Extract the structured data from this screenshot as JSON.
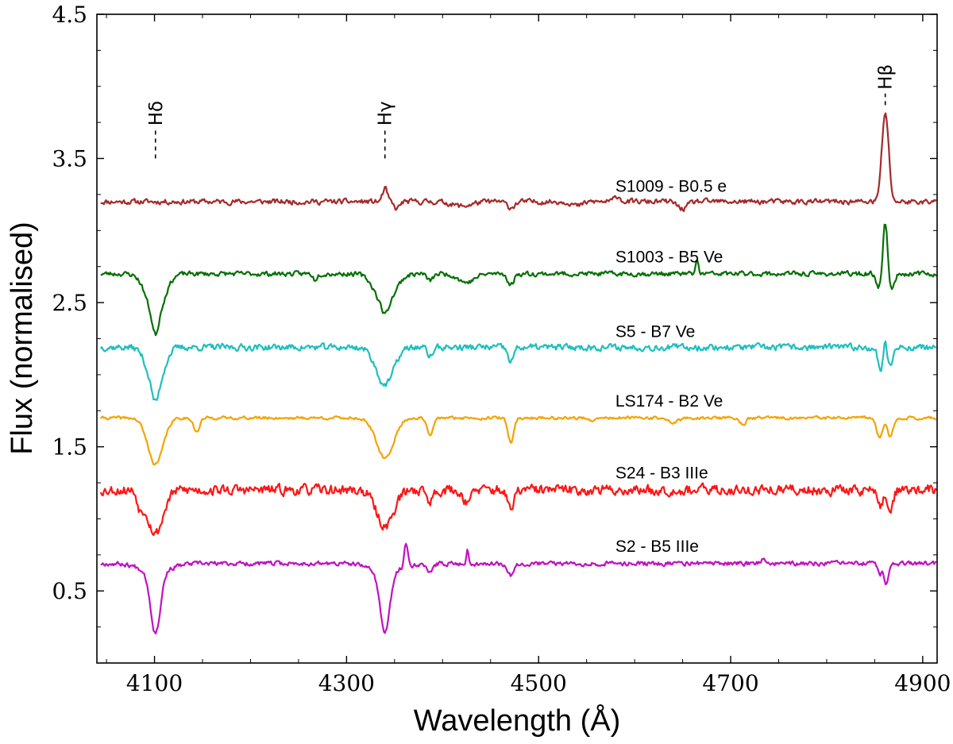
{
  "chart_data": {
    "type": "line",
    "title": "",
    "xlabel": "Wavelength (Å)",
    "ylabel": "Flux (normalised)",
    "xlim": [
      4040,
      4915
    ],
    "ylim": [
      0,
      4.5
    ],
    "xticks": [
      4100,
      4300,
      4500,
      4700,
      4900
    ],
    "xtick_labels": [
      "4100",
      "4300",
      "4500",
      "4700",
      "4900"
    ],
    "yticks": [
      0.5,
      1.5,
      2.5,
      3.5,
      4.5
    ],
    "ytick_labels": [
      "0.5",
      "1.5",
      "2.5",
      "3.5",
      "4.5"
    ],
    "grid": false,
    "line_markers": [
      {
        "label": "Hδ",
        "wavelength": 4101,
        "y_bottom": 3.5,
        "y_top": 3.7
      },
      {
        "label": "Hγ",
        "wavelength": 4340,
        "y_bottom": 3.5,
        "y_top": 3.7
      },
      {
        "label": "Hβ",
        "wavelength": 4861,
        "y_bottom": 3.87,
        "y_top": 3.95
      }
    ],
    "series": [
      {
        "name": "S1009 - B0.5 e",
        "color": "#a52a2a",
        "baseline": 3.2,
        "noise": 0.018,
        "seed": 11,
        "label_wavelength": 4580,
        "label_y": 3.27,
        "features": [
          {
            "center": 4340,
            "depth": -0.09,
            "width": 2.5
          },
          {
            "center": 4352,
            "depth": 0.05,
            "width": 3
          },
          {
            "center": 4420,
            "depth": 0.03,
            "width": 10
          },
          {
            "center": 4471,
            "depth": 0.04,
            "width": 4
          },
          {
            "center": 4541,
            "depth": 0.03,
            "width": 5
          },
          {
            "center": 4582,
            "depth": -0.04,
            "width": 3
          },
          {
            "center": 4650,
            "depth": 0.05,
            "width": 5
          },
          {
            "center": 4861,
            "depth": -0.62,
            "width": 3.5
          }
        ]
      },
      {
        "name": "S1003 - B5 Ve",
        "color": "#067006",
        "baseline": 2.7,
        "noise": 0.016,
        "seed": 23,
        "label_wavelength": 4580,
        "label_y": 2.78,
        "features": [
          {
            "center": 4101,
            "depth": 0.3,
            "width": 9
          },
          {
            "center": 4101,
            "depth": 0.12,
            "width": 3
          },
          {
            "center": 4267,
            "depth": 0.04,
            "width": 2
          },
          {
            "center": 4340,
            "depth": 0.22,
            "width": 10
          },
          {
            "center": 4340,
            "depth": 0.06,
            "width": 3
          },
          {
            "center": 4387,
            "depth": 0.05,
            "width": 3
          },
          {
            "center": 4425,
            "depth": 0.06,
            "width": 8
          },
          {
            "center": 4471,
            "depth": 0.08,
            "width": 3
          },
          {
            "center": 4665,
            "depth": -0.09,
            "width": 1.5
          },
          {
            "center": 4855,
            "depth": 0.1,
            "width": 3
          },
          {
            "center": 4861,
            "depth": -0.38,
            "width": 2.5
          },
          {
            "center": 4867,
            "depth": 0.12,
            "width": 3
          }
        ]
      },
      {
        "name": "S5 - B7 Ve",
        "color": "#1fbfbf",
        "baseline": 2.19,
        "noise": 0.022,
        "seed": 37,
        "label_wavelength": 4580,
        "label_y": 2.26,
        "features": [
          {
            "center": 4101,
            "depth": 0.3,
            "width": 8
          },
          {
            "center": 4101,
            "depth": 0.08,
            "width": 3
          },
          {
            "center": 4340,
            "depth": 0.26,
            "width": 9
          },
          {
            "center": 4387,
            "depth": 0.06,
            "width": 3
          },
          {
            "center": 4471,
            "depth": 0.1,
            "width": 3
          },
          {
            "center": 4856,
            "depth": 0.16,
            "width": 2.5
          },
          {
            "center": 4861,
            "depth": -0.08,
            "width": 1.5
          },
          {
            "center": 4866,
            "depth": 0.12,
            "width": 3
          }
        ]
      },
      {
        "name": "LS174 - B2 Ve",
        "color": "#f5a300",
        "baseline": 1.7,
        "noise": 0.01,
        "seed": 41,
        "label_wavelength": 4580,
        "label_y": 1.78,
        "features": [
          {
            "center": 4101,
            "depth": 0.32,
            "width": 8
          },
          {
            "center": 4144,
            "depth": 0.1,
            "width": 3
          },
          {
            "center": 4340,
            "depth": 0.28,
            "width": 9
          },
          {
            "center": 4387,
            "depth": 0.13,
            "width": 3
          },
          {
            "center": 4471,
            "depth": 0.17,
            "width": 3
          },
          {
            "center": 4556,
            "depth": 0.03,
            "width": 3
          },
          {
            "center": 4640,
            "depth": 0.03,
            "width": 6
          },
          {
            "center": 4713,
            "depth": 0.05,
            "width": 3
          },
          {
            "center": 4855,
            "depth": 0.14,
            "width": 3
          },
          {
            "center": 4866,
            "depth": 0.13,
            "width": 3
          }
        ]
      },
      {
        "name": "S24 - B3 IIIe",
        "color": "#ff1515",
        "baseline": 1.2,
        "noise": 0.035,
        "seed": 53,
        "label_wavelength": 4580,
        "label_y": 1.28,
        "features": [
          {
            "center": 4101,
            "depth": 0.3,
            "width": 8
          },
          {
            "center": 4085,
            "depth": 0.1,
            "width": 3
          },
          {
            "center": 4340,
            "depth": 0.25,
            "width": 9
          },
          {
            "center": 4387,
            "depth": 0.08,
            "width": 3
          },
          {
            "center": 4425,
            "depth": 0.07,
            "width": 5
          },
          {
            "center": 4471,
            "depth": 0.15,
            "width": 3
          },
          {
            "center": 4856,
            "depth": 0.12,
            "width": 2.5
          },
          {
            "center": 4866,
            "depth": 0.14,
            "width": 3
          }
        ]
      },
      {
        "name": "S2 - B5 IIIe",
        "color": "#c012c0",
        "baseline": 0.69,
        "noise": 0.015,
        "seed": 67,
        "label_wavelength": 4580,
        "label_y": 0.77,
        "features": [
          {
            "center": 4101,
            "depth": 0.42,
            "width": 5
          },
          {
            "center": 4101,
            "depth": 0.06,
            "width": 15
          },
          {
            "center": 4340,
            "depth": 0.42,
            "width": 5
          },
          {
            "center": 4340,
            "depth": 0.06,
            "width": 15
          },
          {
            "center": 4362,
            "depth": -0.16,
            "width": 1.8
          },
          {
            "center": 4387,
            "depth": 0.07,
            "width": 3
          },
          {
            "center": 4426,
            "depth": -0.09,
            "width": 1.2
          },
          {
            "center": 4471,
            "depth": 0.08,
            "width": 3
          },
          {
            "center": 4735,
            "depth": -0.03,
            "width": 4
          },
          {
            "center": 4855,
            "depth": 0.08,
            "width": 2
          },
          {
            "center": 4862,
            "depth": 0.14,
            "width": 2.5
          }
        ]
      }
    ]
  }
}
